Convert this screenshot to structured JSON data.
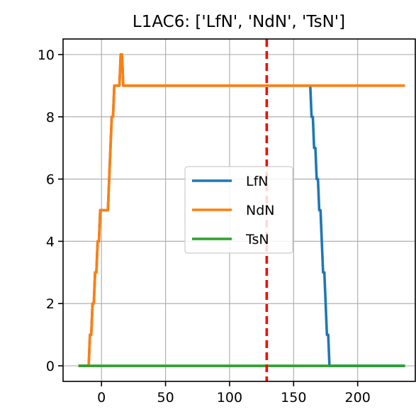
{
  "chart_data": {
    "type": "line",
    "title": "L1AC6: ['LfN', 'NdN', 'TsN']",
    "xlabel": "",
    "ylabel": "",
    "xlim": [
      -30,
      245
    ],
    "ylim": [
      -0.5,
      10.5
    ],
    "xticks": [
      0,
      50,
      100,
      150,
      200
    ],
    "yticks": [
      0,
      2,
      4,
      6,
      8,
      10
    ],
    "xtick_labels": [
      "0",
      "50",
      "100",
      "150",
      "200"
    ],
    "ytick_labels": [
      "0",
      "2",
      "4",
      "6",
      "8",
      "10"
    ],
    "grid": true,
    "legend_position": "center",
    "vline": {
      "x": 129,
      "color": "#ff0000",
      "style": "dashed"
    },
    "series": [
      {
        "name": "LfN",
        "color": "#1f77b4",
        "x": [
          -18,
          -10,
          -9,
          -8,
          -7,
          -6,
          -5,
          -4,
          -3,
          -2,
          -1,
          0,
          1,
          5,
          6,
          7,
          8,
          9,
          10,
          11,
          12,
          13,
          14,
          15,
          16,
          17,
          18,
          163,
          164,
          165,
          166,
          167,
          168,
          169,
          170,
          171,
          172,
          173,
          174,
          175,
          176,
          177,
          178,
          179,
          180,
          237
        ],
        "y": [
          0,
          0,
          1,
          1,
          2,
          2,
          3,
          3,
          4,
          4,
          5,
          5,
          5,
          5,
          6,
          7,
          8,
          8,
          9,
          9,
          9,
          9,
          9,
          10,
          10,
          9,
          9,
          9,
          8,
          8,
          7,
          7,
          6,
          6,
          5,
          5,
          4,
          3,
          3,
          2,
          1,
          1,
          0,
          0,
          0,
          0
        ]
      },
      {
        "name": "NdN",
        "color": "#ff7f0e",
        "x": [
          -18,
          -10,
          -9,
          -8,
          -7,
          -6,
          -5,
          -4,
          -3,
          -2,
          -1,
          0,
          1,
          5,
          6,
          7,
          8,
          9,
          10,
          11,
          12,
          13,
          14,
          15,
          16,
          17,
          18,
          237
        ],
        "y": [
          0,
          0,
          1,
          1,
          2,
          2,
          3,
          3,
          4,
          4,
          5,
          5,
          5,
          5,
          6,
          7,
          8,
          8,
          9,
          9,
          9,
          9,
          9,
          10,
          10,
          9,
          9,
          9
        ]
      },
      {
        "name": "TsN",
        "color": "#2ca02c",
        "x": [
          -18,
          237
        ],
        "y": [
          0,
          0
        ]
      }
    ]
  }
}
